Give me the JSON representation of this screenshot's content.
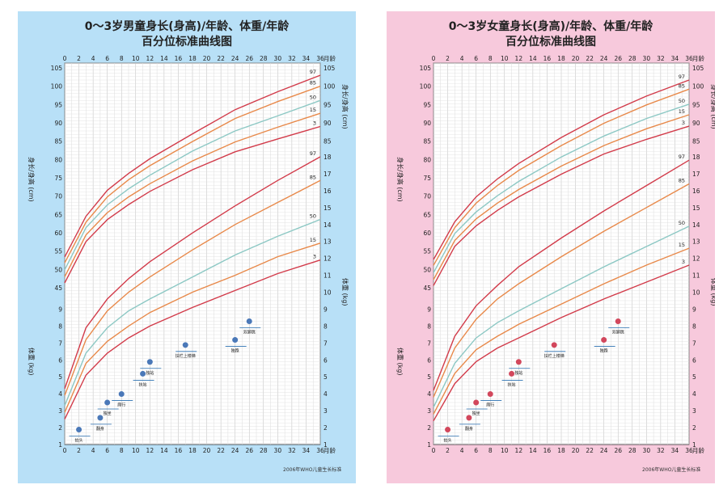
{
  "colors": {
    "boys_bg": "#b8e0f7",
    "girls_bg": "#f7c9dc",
    "p97": "#d23b4a",
    "p85": "#e8894a",
    "p50": "#8cc8c4",
    "p15": "#e8894a",
    "p3": "#d23b4a"
  },
  "boys": {
    "title_line1": "0～3岁男童身长(身高)/年龄、体重/年龄",
    "title_line2": "百分位标准曲线图",
    "footer": "2006年WHO儿童生长标准",
    "milestones": [
      "抬头",
      "翻身",
      "独坐",
      "爬行",
      "扶站",
      "独站",
      "扶栏上楼梯",
      "独跑",
      "双脚跳"
    ]
  },
  "girls": {
    "title_line1": "0～3岁女童身长(身高)/年龄、体重/年龄",
    "title_line2": "百分位标准曲线图",
    "footer": "2006年WHO儿童生长标准",
    "milestones": [
      "抬头",
      "翻身",
      "独坐",
      "爬行",
      "扶站",
      "独站",
      "扶栏上楼梯",
      "独跑",
      "双脚跳"
    ]
  },
  "axis": {
    "x_unit": "月龄",
    "height_label": "身长/身高 (cm)",
    "weight_label": "体重 (kg)"
  },
  "chart_data": [
    {
      "type": "line",
      "title": "0～3岁男童身长(身高)/年龄",
      "xlabel": "月龄",
      "ylabel": "身长/身高 (cm)",
      "xlim": [
        0,
        36
      ],
      "ylim": [
        45,
        105
      ],
      "x": [
        0,
        3,
        6,
        9,
        12,
        18,
        24,
        30,
        36
      ],
      "series": [
        {
          "name": "97",
          "values": [
            53.4,
            64.5,
            71.6,
            76.2,
            80.2,
            87.0,
            93.6,
            98.5,
            103.0
          ]
        },
        {
          "name": "85",
          "values": [
            51.8,
            62.9,
            69.8,
            74.5,
            78.3,
            84.9,
            91.2,
            95.8,
            100.0
          ]
        },
        {
          "name": "50",
          "values": [
            49.9,
            61.4,
            67.6,
            72.0,
            75.7,
            82.3,
            87.8,
            91.9,
            96.1
          ]
        },
        {
          "name": "15",
          "values": [
            48.0,
            59.4,
            65.5,
            69.8,
            73.4,
            79.6,
            84.8,
            88.8,
            92.6
          ]
        },
        {
          "name": "3",
          "values": [
            46.3,
            57.6,
            63.6,
            67.7,
            71.3,
            77.2,
            82.1,
            85.6,
            89.0
          ]
        }
      ]
    },
    {
      "type": "line",
      "title": "0～3岁男童体重/年龄",
      "xlabel": "月龄",
      "ylabel": "体重 (kg)",
      "xlim": [
        0,
        36
      ],
      "ylim": [
        1,
        18
      ],
      "x": [
        0,
        3,
        6,
        9,
        12,
        18,
        24,
        30,
        36
      ],
      "series": [
        {
          "name": "97",
          "values": [
            4.3,
            7.9,
            9.6,
            10.8,
            11.8,
            13.5,
            15.1,
            16.6,
            18.0
          ]
        },
        {
          "name": "85",
          "values": [
            3.9,
            7.2,
            8.9,
            10.0,
            10.9,
            12.5,
            14.0,
            15.3,
            16.6
          ]
        },
        {
          "name": "50",
          "values": [
            3.3,
            6.4,
            7.9,
            8.9,
            9.6,
            10.9,
            12.2,
            13.3,
            14.3
          ]
        },
        {
          "name": "15",
          "values": [
            2.9,
            5.8,
            7.1,
            8.0,
            8.8,
            10.0,
            11.0,
            12.1,
            12.9
          ]
        },
        {
          "name": "3",
          "values": [
            2.5,
            5.1,
            6.4,
            7.3,
            8.0,
            9.1,
            10.1,
            11.1,
            11.9
          ]
        }
      ]
    },
    {
      "type": "line",
      "title": "0～3岁女童身长(身高)/年龄",
      "xlabel": "月龄",
      "ylabel": "身长/身高 (cm)",
      "xlim": [
        0,
        36
      ],
      "ylim": [
        45,
        105
      ],
      "x": [
        0,
        3,
        6,
        9,
        12,
        18,
        24,
        30,
        36
      ],
      "series": [
        {
          "name": "97",
          "values": [
            52.7,
            63.0,
            69.8,
            74.7,
            78.9,
            86.0,
            92.2,
            97.3,
            101.7
          ]
        },
        {
          "name": "85",
          "values": [
            51.1,
            61.4,
            68.1,
            72.9,
            77.0,
            83.8,
            89.9,
            94.9,
            99.2
          ]
        },
        {
          "name": "50",
          "values": [
            49.1,
            59.8,
            65.7,
            70.1,
            74.0,
            80.7,
            86.4,
            91.2,
            95.1
          ]
        },
        {
          "name": "15",
          "values": [
            47.2,
            57.9,
            63.8,
            68.1,
            71.8,
            78.2,
            83.8,
            88.4,
            92.2
          ]
        },
        {
          "name": "3",
          "values": [
            45.6,
            56.3,
            61.9,
            66.1,
            69.8,
            76.0,
            81.5,
            85.5,
            89.1
          ]
        }
      ]
    },
    {
      "type": "line",
      "title": "0～3岁女童体重/年龄",
      "xlabel": "月龄",
      "ylabel": "体重 (kg)",
      "xlim": [
        0,
        36
      ],
      "ylim": [
        1,
        18
      ],
      "x": [
        0,
        3,
        6,
        9,
        12,
        18,
        24,
        30,
        36
      ],
      "series": [
        {
          "name": "97",
          "values": [
            4.2,
            7.4,
            9.2,
            10.4,
            11.5,
            13.2,
            14.8,
            16.3,
            17.8
          ]
        },
        {
          "name": "85",
          "values": [
            3.8,
            6.7,
            8.4,
            9.6,
            10.5,
            12.1,
            13.6,
            15.0,
            16.4
          ]
        },
        {
          "name": "50",
          "values": [
            3.2,
            5.8,
            7.3,
            8.2,
            8.9,
            10.2,
            11.5,
            12.7,
            13.9
          ]
        },
        {
          "name": "15",
          "values": [
            2.8,
            5.2,
            6.6,
            7.4,
            8.1,
            9.3,
            10.5,
            11.6,
            12.6
          ]
        },
        {
          "name": "3",
          "values": [
            2.4,
            4.6,
            5.9,
            6.7,
            7.3,
            8.5,
            9.6,
            10.6,
            11.6
          ]
        }
      ]
    }
  ]
}
